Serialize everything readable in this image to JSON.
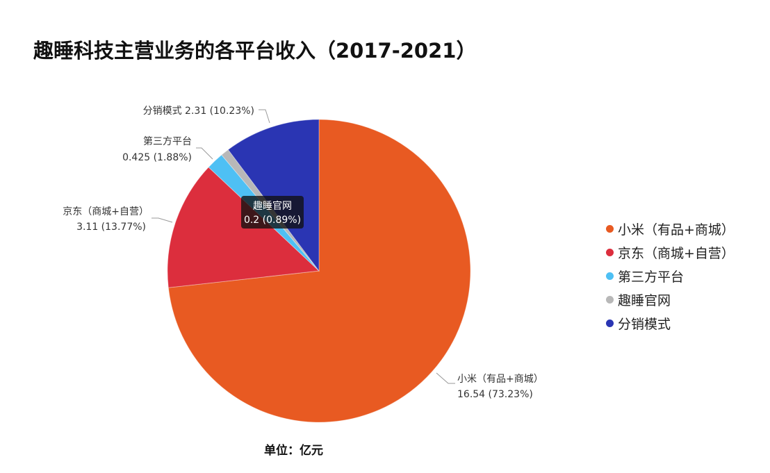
{
  "chart_data": {
    "type": "pie",
    "title": "趣睡科技主营业务的各平台收入（2017-2021）",
    "unit_label": "单位：亿元",
    "legend_position": "right",
    "slices": [
      {
        "label": "小米（有品+商城）",
        "value": 16.54,
        "percent": "73.23%",
        "value_text": "16.54",
        "color": "#e85a22"
      },
      {
        "label": "京东（商城+自营）",
        "value": 3.11,
        "percent": "13.77%",
        "value_text": "3.11",
        "color": "#dc2e3d"
      },
      {
        "label": "第三方平台",
        "value": 0.425,
        "percent": "1.88%",
        "value_text": "0.425",
        "color": "#4ec0f4"
      },
      {
        "label": "趣睡官网",
        "value": 0.2,
        "percent": "0.89%",
        "value_text": "0.2",
        "color": "#b8b8b8"
      },
      {
        "label": "分销模式",
        "value": 2.31,
        "percent": "10.23%",
        "value_text": "2.31",
        "color": "#2a35b3"
      }
    ],
    "tooltip": {
      "title": "趣睡官网",
      "text": "0.2 (0.89%)"
    },
    "labels": {
      "xiaomi": {
        "line1": "小米（有品+商城）",
        "line2": "16.54 (73.23%)"
      },
      "jd": {
        "line1": "京东（商城+自营）",
        "line2": "3.11 (13.77%)"
      },
      "third": {
        "line1": "第三方平台",
        "line2": "0.425 (1.88%)"
      },
      "distrib": {
        "line1": "分销模式 2.31 (10.23%)"
      }
    }
  }
}
